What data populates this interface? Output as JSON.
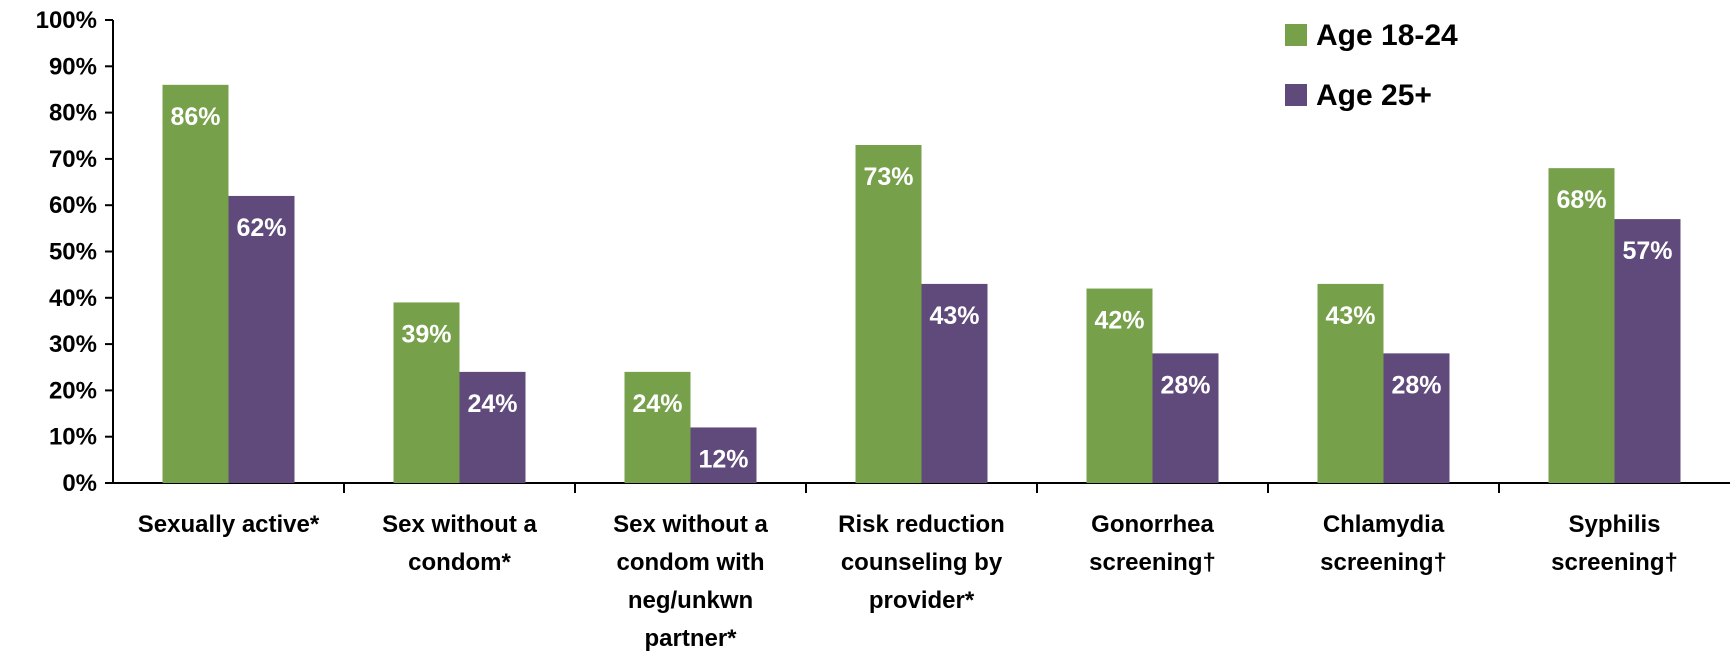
{
  "chart_data": {
    "type": "bar",
    "categories": [
      [
        "Sexually active*"
      ],
      [
        "Sex without a",
        "condom*"
      ],
      [
        "Sex without a",
        "condom with",
        "neg/unkwn",
        "partner*"
      ],
      [
        "Risk reduction",
        "counseling by",
        "provider*"
      ],
      [
        "Gonorrhea",
        "screening†"
      ],
      [
        "Chlamydia",
        "screening†"
      ],
      [
        "Syphilis",
        "screening†"
      ]
    ],
    "series": [
      {
        "name": "Age 18-24",
        "color": "#77A04B",
        "values": [
          86,
          39,
          24,
          73,
          42,
          43,
          68
        ],
        "labels": [
          "86%",
          "39%",
          "24%",
          "73%",
          "42%",
          "43%",
          "68%"
        ]
      },
      {
        "name": "Age 25+",
        "color": "#604A7B",
        "values": [
          62,
          24,
          12,
          43,
          28,
          28,
          57
        ],
        "labels": [
          "62%",
          "24%",
          "12%",
          "43%",
          "28%",
          "28%",
          "57%"
        ]
      }
    ],
    "ylim": [
      0,
      100
    ],
    "yticks": [
      "0%",
      "10%",
      "20%",
      "30%",
      "40%",
      "50%",
      "60%",
      "70%",
      "80%",
      "90%",
      "100%"
    ],
    "legend_position": "top-right",
    "grid": false
  }
}
